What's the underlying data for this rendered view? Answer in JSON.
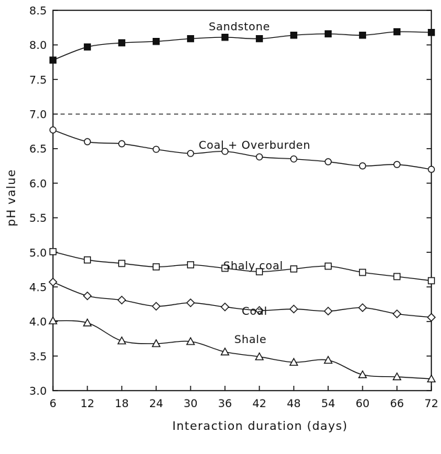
{
  "chart_data": {
    "type": "line",
    "xlabel": "Interaction duration (days)",
    "ylabel": "pH value",
    "xlim": [
      6,
      72
    ],
    "ylim": [
      3.0,
      8.5
    ],
    "x_ticks": [
      6,
      12,
      18,
      24,
      30,
      36,
      42,
      48,
      54,
      60,
      66,
      72
    ],
    "y_ticks": [
      "3.0",
      "3.5",
      "4.0",
      "4.5",
      "5.0",
      "5.5",
      "6.0",
      "6.5",
      "7.0",
      "7.5",
      "8.0",
      "8.5"
    ],
    "grid": false,
    "reference_line": {
      "y": 7.0,
      "style": "dashed"
    },
    "x": [
      6,
      12,
      18,
      24,
      30,
      36,
      42,
      48,
      54,
      60,
      66,
      72
    ],
    "series": [
      {
        "name": "Sandstone",
        "marker": "filled-square",
        "values": [
          7.78,
          7.97,
          8.03,
          8.05,
          8.09,
          8.11,
          8.09,
          8.14,
          8.16,
          8.14,
          8.19,
          8.18
        ]
      },
      {
        "name": "Coal + Overburden",
        "marker": "circle",
        "values": [
          6.77,
          6.6,
          6.57,
          6.49,
          6.43,
          6.46,
          6.38,
          6.35,
          6.31,
          6.25,
          6.27,
          6.2
        ]
      },
      {
        "name": "Shaly coal",
        "marker": "square",
        "values": [
          5.01,
          4.89,
          4.84,
          4.79,
          4.82,
          4.77,
          4.72,
          4.76,
          4.8,
          4.71,
          4.65,
          4.59
        ]
      },
      {
        "name": "Coal",
        "marker": "diamond",
        "values": [
          4.57,
          4.37,
          4.31,
          4.22,
          4.27,
          4.21,
          4.16,
          4.18,
          4.15,
          4.2,
          4.11,
          4.06
        ]
      },
      {
        "name": "Shale",
        "marker": "triangle",
        "values": [
          4.01,
          3.98,
          3.72,
          3.68,
          3.71,
          3.56,
          3.49,
          3.41,
          3.44,
          3.23,
          3.2,
          3.17
        ]
      }
    ]
  }
}
